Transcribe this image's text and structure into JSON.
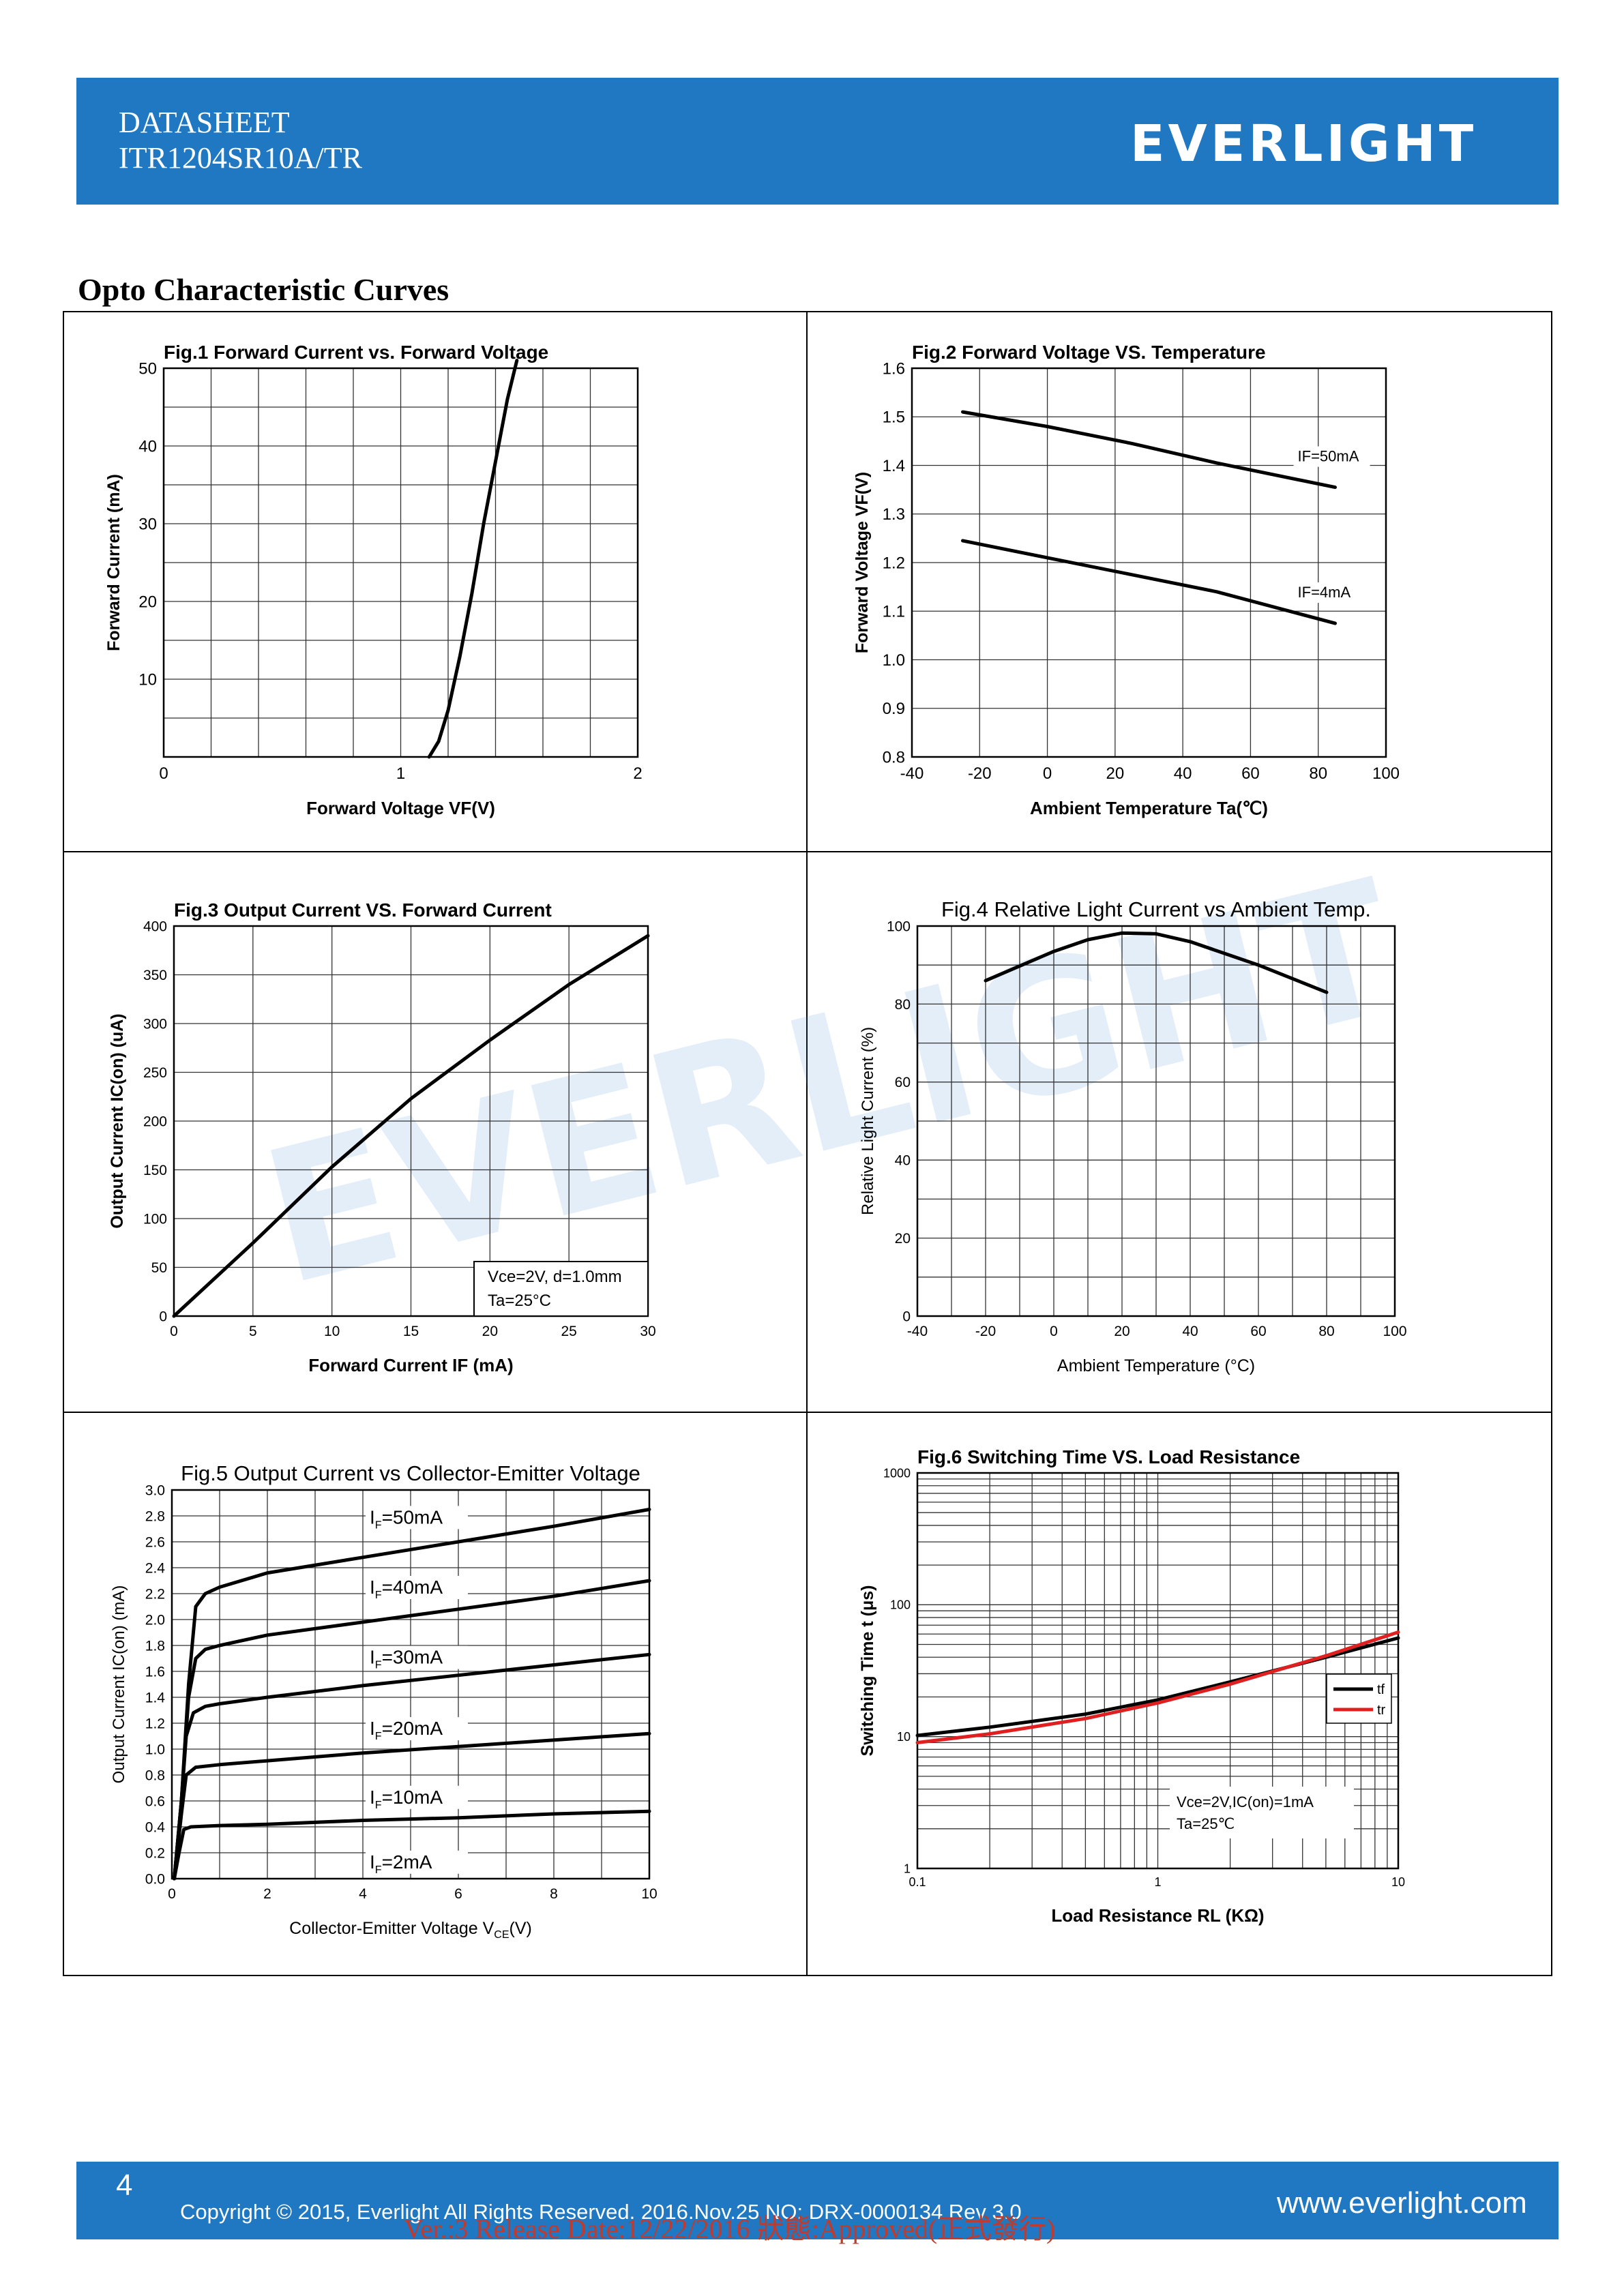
{
  "header": {
    "line1": "DATASHEET",
    "line2": "ITR1204SR10A/TR",
    "brand": "EVERLIGHT",
    "color": "#1f78c1"
  },
  "section_title": "Opto Characteristic Curves",
  "watermark": "EVERLIGHT",
  "footer": {
    "page_number": "4",
    "copyright": "Copyright © 2015, Everlight All Rights Reserved. 2016.Nov.25     NO: DRX-0000134     Rev 3.0",
    "release": "Ver.:3     Release Date:12/22/2016     狀態:Approved(正式發行)",
    "url": "www.everlight.com"
  },
  "chart_data": [
    {
      "id": "fig1",
      "type": "line",
      "title": "Fig.1 Forward Current vs. Forward Voltage",
      "xlabel": "Forward Voltage VF(V)",
      "ylabel": "Forward Current (mA)",
      "xlim": [
        0,
        2
      ],
      "ylim": [
        0,
        50
      ],
      "x_ticks": [
        "0",
        "1",
        "2"
      ],
      "y_ticks": [
        "10",
        "20",
        "30",
        "40",
        "50"
      ],
      "grid": true,
      "series": [
        {
          "values": [
            [
              1.12,
              0
            ],
            [
              1.16,
              2
            ],
            [
              1.2,
              6
            ],
            [
              1.25,
              13
            ],
            [
              1.3,
              21
            ],
            [
              1.35,
              30
            ],
            [
              1.4,
              38
            ],
            [
              1.45,
              46
            ],
            [
              1.49,
              51
            ]
          ]
        }
      ]
    },
    {
      "id": "fig2",
      "type": "line",
      "title": "Fig.2 Forward Voltage VS. Temperature",
      "xlabel": "Ambient Temperature Ta(℃)",
      "ylabel": "Forward Voltage VF(V)",
      "xlim": [
        -40,
        100
      ],
      "ylim": [
        0.8,
        1.6
      ],
      "x_ticks": [
        "-40",
        "-20",
        "0",
        "20",
        "40",
        "60",
        "80",
        "100"
      ],
      "y_ticks": [
        "0.8",
        "0.9",
        "1.0",
        "1.1",
        "1.2",
        "1.3",
        "1.4",
        "1.5",
        "1.6"
      ],
      "grid": true,
      "series": [
        {
          "name": "IF=50mA",
          "values": [
            [
              -25,
              1.51
            ],
            [
              0,
              1.48
            ],
            [
              25,
              1.445
            ],
            [
              50,
              1.405
            ],
            [
              85,
              1.355
            ]
          ]
        },
        {
          "name": "IF=4mA",
          "values": [
            [
              -25,
              1.245
            ],
            [
              0,
              1.21
            ],
            [
              25,
              1.175
            ],
            [
              50,
              1.14
            ],
            [
              85,
              1.075
            ]
          ]
        }
      ]
    },
    {
      "id": "fig3",
      "type": "line",
      "title": "Fig.3 Output Current VS. Forward Current",
      "xlabel": "Forward Current IF (mA)",
      "ylabel": "Output Current IC(on) (uA)",
      "xlim": [
        0,
        30
      ],
      "ylim": [
        0,
        400
      ],
      "x_ticks": [
        "0",
        "5",
        "10",
        "15",
        "20",
        "25",
        "30"
      ],
      "y_ticks": [
        "0",
        "50",
        "100",
        "150",
        "200",
        "250",
        "300",
        "350",
        "400"
      ],
      "grid": true,
      "annotation": [
        "Vce=2V, d=1.0mm",
        "Ta=25°C"
      ],
      "series": [
        {
          "values": [
            [
              0,
              0
            ],
            [
              5,
              75
            ],
            [
              10,
              153
            ],
            [
              15,
              223
            ],
            [
              20,
              283
            ],
            [
              25,
              340
            ],
            [
              30,
              390
            ]
          ]
        }
      ]
    },
    {
      "id": "fig4",
      "type": "line",
      "title": "Fig.4 Relative Light Current vs Ambient Temp.",
      "xlabel": "Ambient Temperature (°C)",
      "ylabel": "Relative Light Current (%)",
      "xlim": [
        -40,
        100
      ],
      "ylim": [
        0,
        100
      ],
      "x_ticks": [
        "-40",
        "-20",
        "0",
        "20",
        "40",
        "60",
        "80",
        "100"
      ],
      "y_ticks": [
        "0",
        "20",
        "40",
        "60",
        "80",
        "100"
      ],
      "grid": true,
      "series": [
        {
          "values": [
            [
              -20,
              86
            ],
            [
              0,
              93.5
            ],
            [
              10,
              96.5
            ],
            [
              20,
              98.2
            ],
            [
              30,
              98
            ],
            [
              40,
              96
            ],
            [
              60,
              90
            ],
            [
              80,
              83
            ]
          ]
        }
      ]
    },
    {
      "id": "fig5",
      "type": "line",
      "title": "Fig.5 Output Current vs Collector-Emitter Voltage",
      "xlabel": "Collector-Emitter Voltage V",
      "xlabel_sub": "CE",
      "xlabel_suffix": "(V)",
      "ylabel": "Output Current IC(on) (mA)",
      "xlim": [
        0,
        10
      ],
      "ylim": [
        0,
        3.0
      ],
      "x_ticks": [
        "0",
        "2",
        "4",
        "6",
        "8",
        "10"
      ],
      "y_ticks": [
        "0.0",
        "0.2",
        "0.4",
        "0.6",
        "0.8",
        "1.0",
        "1.2",
        "1.4",
        "1.6",
        "1.8",
        "2.0",
        "2.2",
        "2.4",
        "2.6",
        "2.8",
        "3.0"
      ],
      "grid": true,
      "series": [
        {
          "name": "I",
          "sub": "F",
          "suffix": "=50mA",
          "label_at": [
            5.0,
            2.74
          ],
          "values": [
            [
              0.05,
              0
            ],
            [
              0.2,
              0.6
            ],
            [
              0.35,
              1.5
            ],
            [
              0.5,
              2.1
            ],
            [
              0.7,
              2.2
            ],
            [
              1,
              2.25
            ],
            [
              2,
              2.36
            ],
            [
              4,
              2.48
            ],
            [
              6,
              2.6
            ],
            [
              8,
              2.72
            ],
            [
              10,
              2.85
            ]
          ]
        },
        {
          "name": "I",
          "sub": "F",
          "suffix": "=40mA",
          "label_at": [
            5.0,
            2.2
          ],
          "values": [
            [
              0.05,
              0
            ],
            [
              0.2,
              0.6
            ],
            [
              0.35,
              1.4
            ],
            [
              0.5,
              1.7
            ],
            [
              0.7,
              1.77
            ],
            [
              1,
              1.8
            ],
            [
              2,
              1.88
            ],
            [
              4,
              1.98
            ],
            [
              6,
              2.08
            ],
            [
              8,
              2.18
            ],
            [
              10,
              2.3
            ]
          ]
        },
        {
          "name": "I",
          "sub": "F",
          "suffix": "=30mA",
          "label_at": [
            5.0,
            1.66
          ],
          "values": [
            [
              0.05,
              0
            ],
            [
              0.2,
              0.6
            ],
            [
              0.3,
              1.1
            ],
            [
              0.45,
              1.28
            ],
            [
              0.7,
              1.33
            ],
            [
              1,
              1.35
            ],
            [
              2,
              1.4
            ],
            [
              4,
              1.49
            ],
            [
              6,
              1.57
            ],
            [
              8,
              1.65
            ],
            [
              10,
              1.73
            ]
          ]
        },
        {
          "name": "I",
          "sub": "F",
          "suffix": "=20mA",
          "label_at": [
            5.0,
            1.11
          ],
          "values": [
            [
              0.05,
              0
            ],
            [
              0.2,
              0.5
            ],
            [
              0.3,
              0.8
            ],
            [
              0.5,
              0.86
            ],
            [
              1,
              0.88
            ],
            [
              2,
              0.91
            ],
            [
              4,
              0.97
            ],
            [
              6,
              1.02
            ],
            [
              8,
              1.07
            ],
            [
              10,
              1.12
            ]
          ]
        },
        {
          "name": "I",
          "sub": "F",
          "suffix": "=10mA",
          "label_at": [
            5.0,
            0.58
          ],
          "values": [
            [
              0.05,
              0
            ],
            [
              0.15,
              0.2
            ],
            [
              0.25,
              0.38
            ],
            [
              0.4,
              0.4
            ],
            [
              1,
              0.41
            ],
            [
              2,
              0.42
            ],
            [
              4,
              0.45
            ],
            [
              6,
              0.47
            ],
            [
              8,
              0.5
            ],
            [
              10,
              0.52
            ]
          ]
        },
        {
          "name": "I",
          "sub": "F",
          "suffix": "=2mA",
          "label_at": [
            5.0,
            0.08
          ],
          "values": []
        }
      ]
    },
    {
      "id": "fig6",
      "type": "line",
      "title": "Fig.6 Switching Time VS. Load Resistance",
      "xlabel": "Load Resistance RL (KΩ)",
      "ylabel": "Switching Time t (μs)",
      "xscale": "log",
      "yscale": "log",
      "xlim": [
        0.1,
        10
      ],
      "ylim": [
        1,
        1000
      ],
      "x_ticks": [
        "0.1",
        "1",
        "10"
      ],
      "y_ticks": [
        "1",
        "10",
        "100",
        "1000"
      ],
      "grid": true,
      "annotation": [
        "Vce=2V,IC(on)=1mA",
        "Ta=25℃"
      ],
      "legend": "right",
      "series": [
        {
          "name": "tf",
          "color": "#000000",
          "values": [
            [
              0.1,
              10.2
            ],
            [
              0.2,
              11.8
            ],
            [
              0.5,
              14.8
            ],
            [
              1,
              19
            ],
            [
              2,
              26
            ],
            [
              5,
              40
            ],
            [
              10,
              56
            ]
          ]
        },
        {
          "name": "tr",
          "color": "#e02020",
          "values": [
            [
              0.1,
              9.0
            ],
            [
              0.2,
              10.5
            ],
            [
              0.5,
              13.7
            ],
            [
              1,
              18
            ],
            [
              2,
              25
            ],
            [
              5,
              41
            ],
            [
              10,
              62
            ]
          ]
        }
      ]
    }
  ]
}
